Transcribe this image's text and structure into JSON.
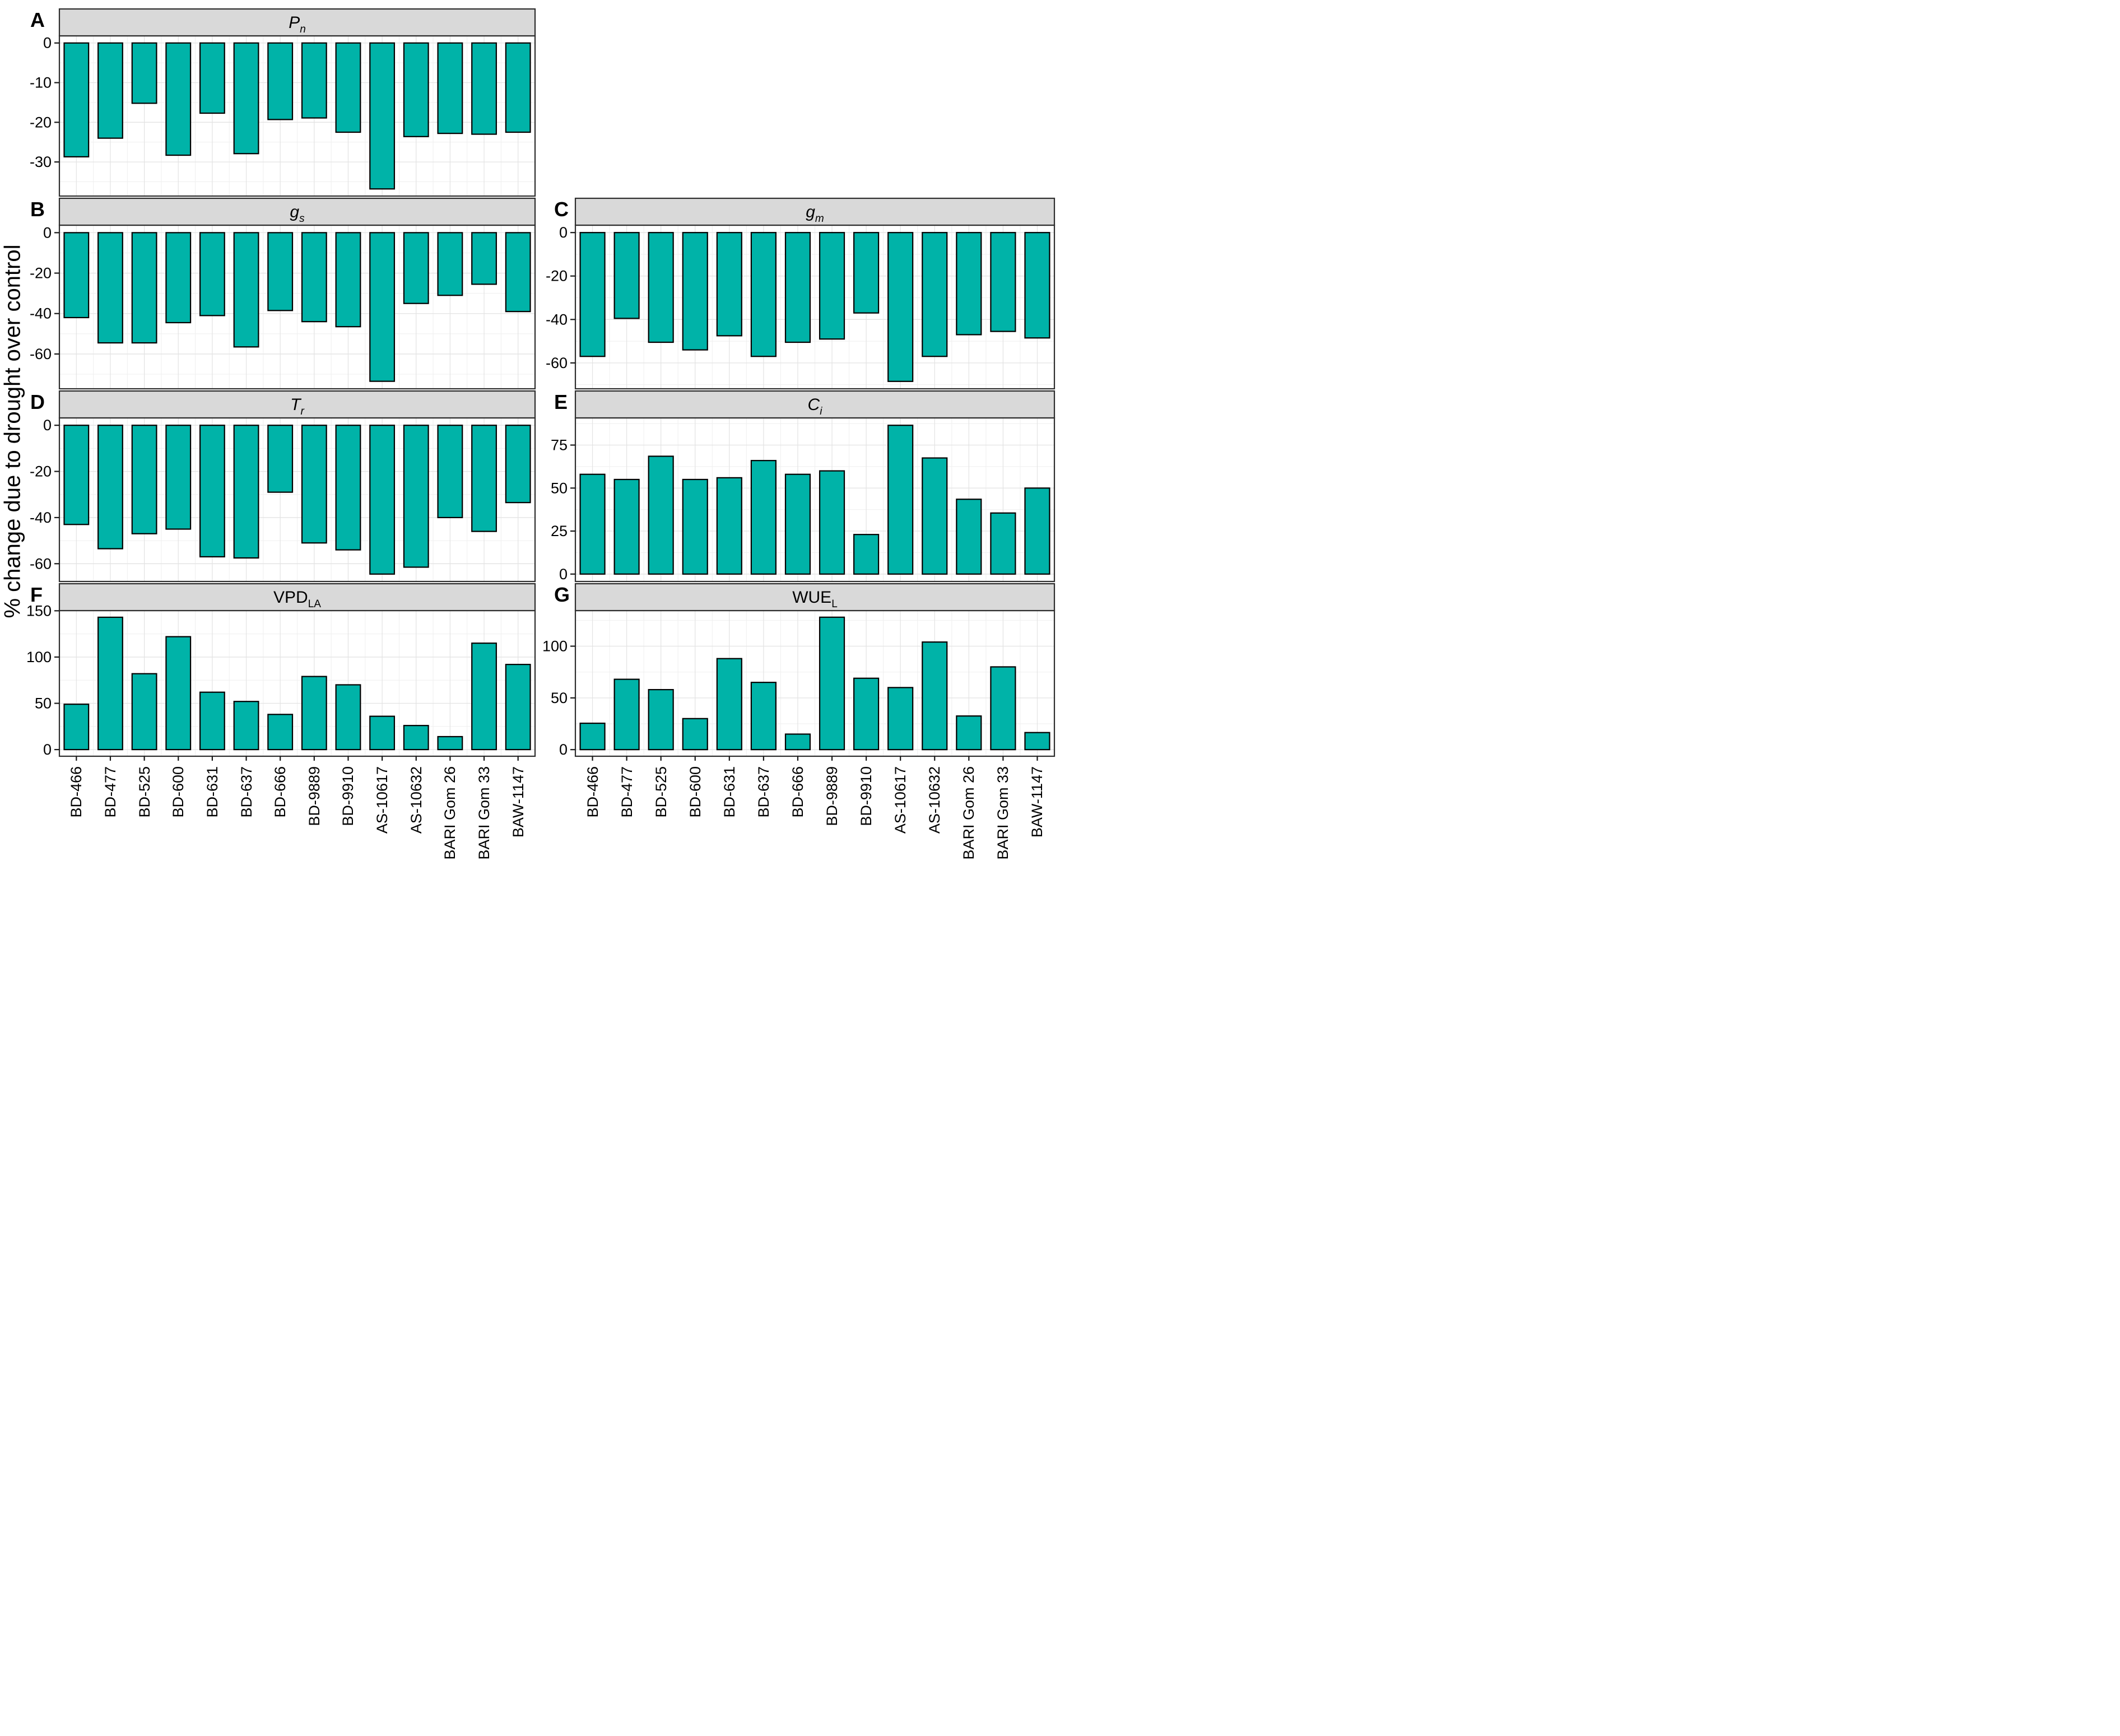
{
  "figure": {
    "colors": {
      "bar": "#00b3a8",
      "bar_border": "#000000",
      "header_bg": "#d9d9d9",
      "panel_border": "#2e2e2e",
      "tick": "#1a1a1a",
      "grid_major": "#e3e3e3",
      "grid_minor": "#efefef",
      "background": "#ffffff"
    }
  },
  "chart_data": {
    "type": "bar",
    "ylabel": "% change due to drought over control",
    "legend": "none",
    "grid": "on",
    "categories": [
      "BD-466",
      "BD-477",
      "BD-525",
      "BD-600",
      "BD-631",
      "BD-637",
      "BD-666",
      "BD-9889",
      "BD-9910",
      "AS-10617",
      "AS-10632",
      "BARI Gom 26",
      "BARI Gom 33",
      "BAW-1147"
    ],
    "panels": [
      {
        "letter": "A",
        "title": "P",
        "sub": "n",
        "italic": true,
        "side": "left",
        "row": 0,
        "yticks": [
          0,
          -10,
          -20,
          -30
        ],
        "ylim": [
          -38.6,
          1.8
        ],
        "values": [
          -28.7,
          -24,
          -15.2,
          -28.3,
          -17.7,
          -27.9,
          -19.3,
          -18.9,
          -22.5,
          -36.8,
          -23.6,
          -22.8,
          -23,
          -22.5
        ]
      },
      {
        "letter": "B",
        "title": "g",
        "sub": "s",
        "italic": true,
        "side": "left",
        "row": 1,
        "yticks": [
          0,
          -20,
          -40,
          -60
        ],
        "ylim": [
          -77.2,
          3.7
        ],
        "values": [
          -42,
          -54.5,
          -54.5,
          -44.5,
          -41,
          -56.5,
          -38.5,
          -44,
          -46.5,
          -73.5,
          -35,
          -31,
          -25.5,
          -39
        ]
      },
      {
        "letter": "C",
        "title": "g",
        "sub": "m",
        "italic": true,
        "side": "right",
        "row": 1,
        "yticks": [
          0,
          -20,
          -40,
          -60
        ],
        "ylim": [
          -71.9,
          3.4
        ],
        "values": [
          -57,
          -39.5,
          -50.5,
          -54,
          -47.5,
          -57,
          -50.5,
          -49,
          -37,
          -68.5,
          -57,
          -47,
          -45.5,
          -48.5
        ]
      },
      {
        "letter": "D",
        "title": "T",
        "sub": "r",
        "italic": true,
        "side": "left",
        "row": 2,
        "yticks": [
          0,
          -20,
          -40,
          -60
        ],
        "ylim": [
          -67.7,
          3.2
        ],
        "values": [
          -43,
          -53.5,
          -47,
          -45,
          -57,
          -57.5,
          -29,
          -51,
          -54,
          -64.5,
          -61.5,
          -40,
          -46,
          -33.5
        ]
      },
      {
        "letter": "E",
        "title": "C",
        "sub": "i",
        "italic": true,
        "side": "right",
        "row": 2,
        "yticks": [
          0,
          25,
          50,
          75
        ],
        "ylim": [
          -4.3,
          90.8
        ],
        "values": [
          58,
          55,
          68.5,
          55,
          56,
          66,
          58,
          60,
          23,
          86.5,
          67.5,
          43.5,
          35.5,
          50
        ]
      },
      {
        "letter": "F",
        "title": "VPD",
        "sub": "LA",
        "italic": false,
        "side": "left",
        "row": 3,
        "yticks": [
          0,
          50,
          100,
          150
        ],
        "ylim": [
          -7.2,
          150.2
        ],
        "values": [
          49,
          143,
          82,
          122,
          62,
          52,
          38,
          79,
          70,
          36,
          26,
          14,
          115,
          92
        ]
      },
      {
        "letter": "G",
        "title": "WUE",
        "sub": "L",
        "italic": false,
        "side": "right",
        "row": 3,
        "yticks": [
          0,
          50,
          100
        ],
        "ylim": [
          -6.4,
          134.4
        ],
        "values": [
          25.5,
          68,
          58,
          30,
          88,
          65,
          15,
          128,
          69,
          60,
          104,
          32.5,
          80,
          16.5
        ]
      }
    ]
  }
}
